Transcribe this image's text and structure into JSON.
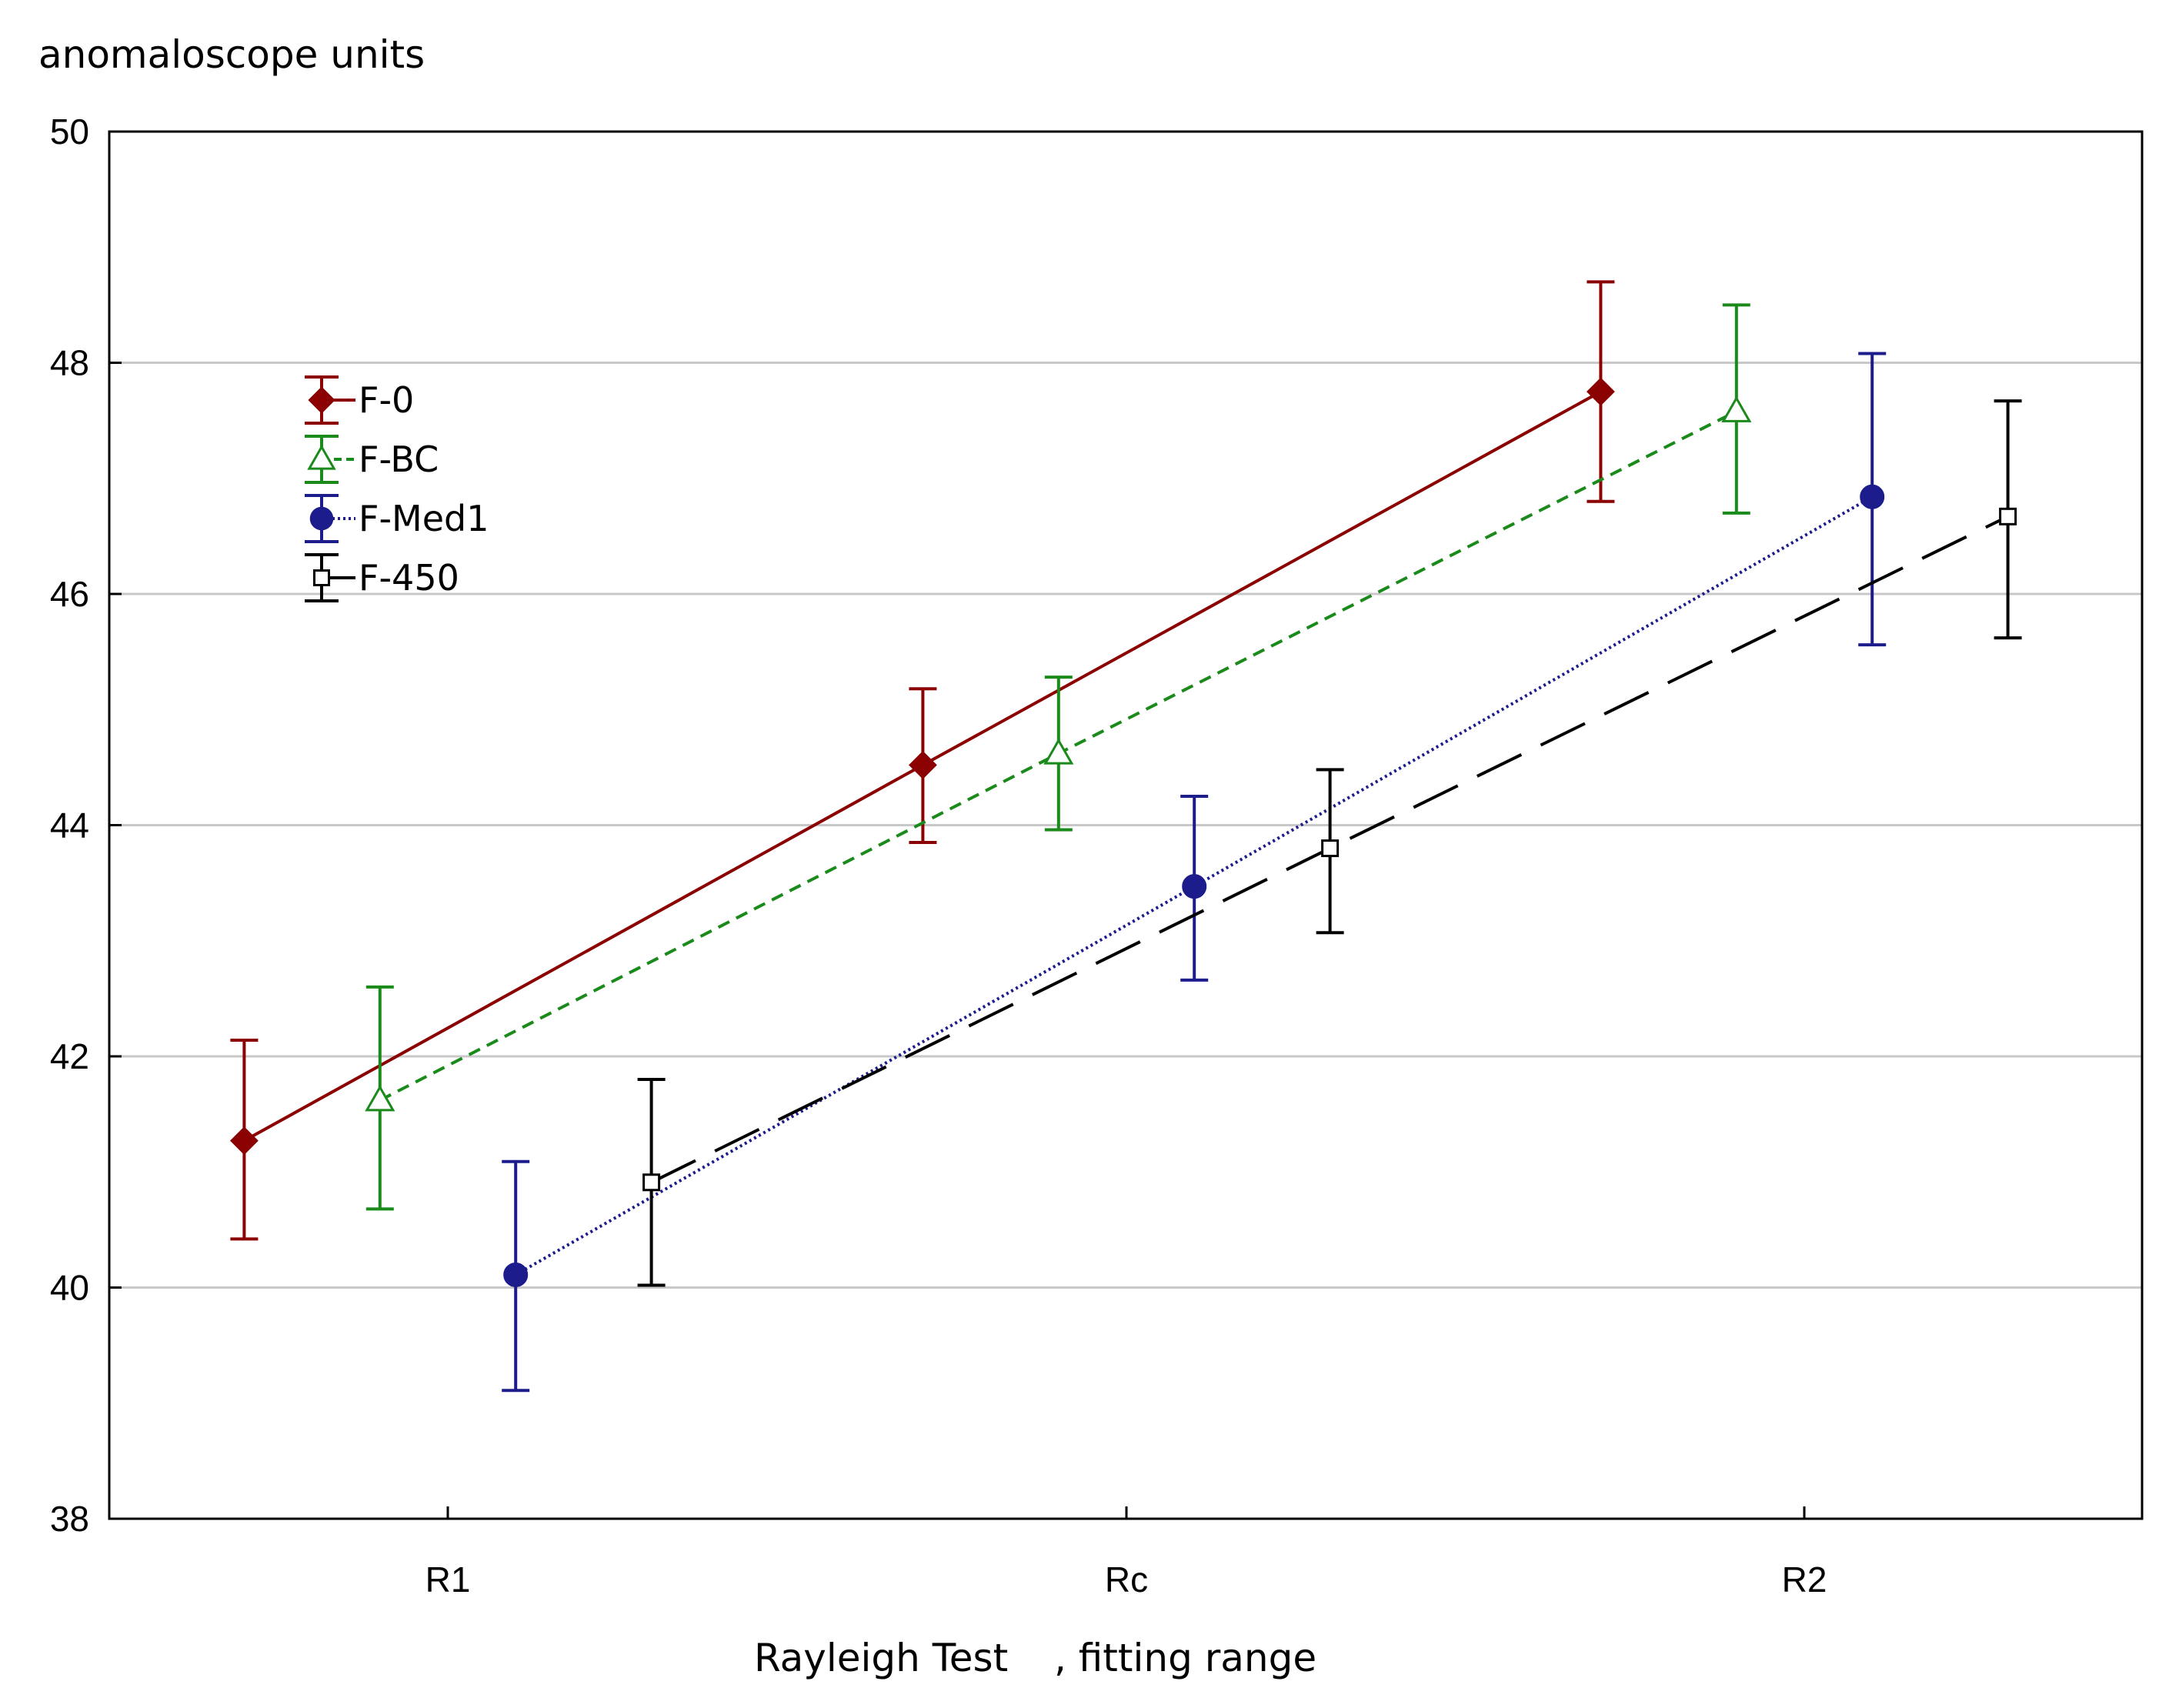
{
  "chart_data": {
    "type": "line",
    "title": "",
    "ylabel": "anomaloscope units",
    "xlabel": "Rayleigh Test",
    "xlabel_suffix": ", fitting range",
    "categories": [
      "R1",
      "Rc",
      "R2"
    ],
    "ylim": [
      38,
      50
    ],
    "yticks": [
      38,
      40,
      42,
      44,
      46,
      48,
      50
    ],
    "grid": true,
    "legend_position": "upper-left",
    "series": [
      {
        "name": "F-0",
        "color": "#8b0000",
        "marker": "diamond",
        "line_style": "solid",
        "offset": -0.3,
        "values": [
          41.27,
          44.52,
          47.75
        ],
        "err_low": [
          40.42,
          43.85,
          46.8
        ],
        "err_high": [
          42.14,
          45.18,
          48.7
        ]
      },
      {
        "name": "F-BC",
        "color": "#1a8a1a",
        "marker": "triangle-open",
        "line_style": "dashed",
        "offset": -0.1,
        "values": [
          41.62,
          44.62,
          47.58
        ],
        "err_low": [
          40.68,
          43.96,
          46.7
        ],
        "err_high": [
          42.6,
          45.28,
          48.5
        ]
      },
      {
        "name": "F-Med1",
        "color": "#1c1c8c",
        "marker": "circle",
        "line_style": "dotted",
        "offset": 0.1,
        "values": [
          40.11,
          43.47,
          46.84
        ],
        "err_low": [
          39.11,
          42.66,
          45.56
        ],
        "err_high": [
          41.09,
          44.25,
          48.08
        ]
      },
      {
        "name": "F-450",
        "color": "#000000",
        "marker": "square-open",
        "line_style": "longdash",
        "offset": 0.3,
        "values": [
          40.91,
          43.8,
          46.67
        ],
        "err_low": [
          40.02,
          43.07,
          45.62
        ],
        "err_high": [
          41.8,
          44.48,
          47.67
        ]
      }
    ]
  }
}
